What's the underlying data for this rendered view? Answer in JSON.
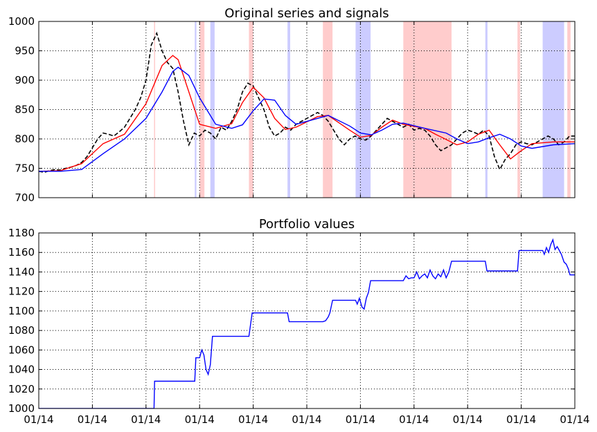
{
  "chart_data": [
    {
      "type": "line",
      "title": "Original series and signals",
      "xlabel": "",
      "ylabel": "",
      "ylim": [
        700,
        1000
      ],
      "yticks": [
        700,
        750,
        800,
        850,
        900,
        950,
        1000
      ],
      "xtick_labels": [
        "01/14",
        "01/14",
        "01/14",
        "01/14",
        "01/14",
        "01/14",
        "01/14",
        "01/14",
        "01/14",
        "01/14",
        "01/14"
      ],
      "grid": true,
      "x_range": [
        0,
        100
      ],
      "series": [
        {
          "color": "#000000",
          "style": "dashed",
          "points": [
            [
              0,
              745
            ],
            [
              1,
              743
            ],
            [
              2,
              746
            ],
            [
              3,
              748
            ],
            [
              4,
              747
            ],
            [
              5,
              750
            ],
            [
              6,
              752
            ],
            [
              7,
              755
            ],
            [
              8,
              760
            ],
            [
              9,
              770
            ],
            [
              10,
              785
            ],
            [
              11,
              800
            ],
            [
              12,
              810
            ],
            [
              13,
              808
            ],
            [
              14,
              805
            ],
            [
              15,
              812
            ],
            [
              16,
              820
            ],
            [
              17,
              835
            ],
            [
              18,
              850
            ],
            [
              19,
              870
            ],
            [
              20,
              900
            ],
            [
              21,
              960
            ],
            [
              22,
              980
            ],
            [
              23,
              950
            ],
            [
              24,
              930
            ],
            [
              25,
              920
            ],
            [
              26,
              880
            ],
            [
              27,
              830
            ],
            [
              28,
              790
            ],
            [
              29,
              810
            ],
            [
              30,
              805
            ],
            [
              31,
              815
            ],
            [
              32,
              810
            ],
            [
              33,
              800
            ],
            [
              34,
              820
            ],
            [
              35,
              815
            ],
            [
              36,
              830
            ],
            [
              37,
              850
            ],
            [
              38,
              880
            ],
            [
              39,
              895
            ],
            [
              40,
              890
            ],
            [
              41,
              870
            ],
            [
              42,
              850
            ],
            [
              43,
              820
            ],
            [
              44,
              805
            ],
            [
              45,
              810
            ],
            [
              46,
              820
            ],
            [
              47,
              815
            ],
            [
              48,
              825
            ],
            [
              49,
              830
            ],
            [
              50,
              835
            ],
            [
              51,
              840
            ],
            [
              52,
              845
            ],
            [
              53,
              840
            ],
            [
              54,
              830
            ],
            [
              55,
              815
            ],
            [
              56,
              800
            ],
            [
              57,
              790
            ],
            [
              58,
              800
            ],
            [
              59,
              805
            ],
            [
              60,
              800
            ],
            [
              61,
              798
            ],
            [
              62,
              805
            ],
            [
              63,
              815
            ],
            [
              64,
              825
            ],
            [
              65,
              835
            ],
            [
              66,
              830
            ],
            [
              67,
              825
            ],
            [
              68,
              820
            ],
            [
              69,
              825
            ],
            [
              70,
              815
            ],
            [
              71,
              818
            ],
            [
              72,
              815
            ],
            [
              73,
              805
            ],
            [
              74,
              790
            ],
            [
              75,
              780
            ],
            [
              76,
              785
            ],
            [
              77,
              790
            ],
            [
              78,
              800
            ],
            [
              79,
              810
            ],
            [
              80,
              815
            ],
            [
              81,
              812
            ],
            [
              82,
              808
            ],
            [
              83,
              815
            ],
            [
              84,
              805
            ],
            [
              85,
              770
            ],
            [
              86,
              748
            ],
            [
              87,
              765
            ],
            [
              88,
              775
            ],
            [
              89,
              790
            ],
            [
              90,
              795
            ],
            [
              91,
              792
            ],
            [
              92,
              790
            ],
            [
              93,
              795
            ],
            [
              94,
              800
            ],
            [
              95,
              805
            ],
            [
              96,
              800
            ],
            [
              97,
              790
            ],
            [
              98,
              795
            ],
            [
              99,
              805
            ],
            [
              100,
              805
            ]
          ]
        },
        {
          "color": "#ff0000",
          "style": "solid",
          "points": [
            [
              0,
              745
            ],
            [
              4,
              746
            ],
            [
              8,
              758
            ],
            [
              12,
              792
            ],
            [
              16,
              808
            ],
            [
              20,
              860
            ],
            [
              23,
              925
            ],
            [
              25,
              942
            ],
            [
              26,
              935
            ],
            [
              28,
              880
            ],
            [
              30,
              825
            ],
            [
              33,
              818
            ],
            [
              36,
              826
            ],
            [
              38,
              862
            ],
            [
              40,
              888
            ],
            [
              42,
              870
            ],
            [
              44,
              835
            ],
            [
              46,
              816
            ],
            [
              48,
              820
            ],
            [
              52,
              838
            ],
            [
              54,
              840
            ],
            [
              58,
              815
            ],
            [
              60,
              803
            ],
            [
              62,
              806
            ],
            [
              64,
              820
            ],
            [
              66,
              832
            ],
            [
              68,
              825
            ],
            [
              72,
              818
            ],
            [
              74,
              808
            ],
            [
              78,
              790
            ],
            [
              80,
              795
            ],
            [
              82,
              808
            ],
            [
              84,
              815
            ],
            [
              86,
              790
            ],
            [
              88,
              766
            ],
            [
              90,
              780
            ],
            [
              92,
              792
            ],
            [
              96,
              795
            ],
            [
              100,
              795
            ]
          ]
        },
        {
          "color": "#0000ff",
          "style": "solid",
          "points": [
            [
              0,
              745
            ],
            [
              4,
              745
            ],
            [
              8,
              748
            ],
            [
              12,
              775
            ],
            [
              16,
              800
            ],
            [
              20,
              835
            ],
            [
              23,
              880
            ],
            [
              25,
              915
            ],
            [
              26,
              922
            ],
            [
              28,
              908
            ],
            [
              30,
              870
            ],
            [
              33,
              825
            ],
            [
              36,
              818
            ],
            [
              38,
              824
            ],
            [
              40,
              848
            ],
            [
              42,
              868
            ],
            [
              44,
              866
            ],
            [
              46,
              840
            ],
            [
              48,
              825
            ],
            [
              52,
              835
            ],
            [
              54,
              840
            ],
            [
              58,
              822
            ],
            [
              60,
              810
            ],
            [
              62,
              807
            ],
            [
              64,
              815
            ],
            [
              66,
              825
            ],
            [
              68,
              827
            ],
            [
              72,
              818
            ],
            [
              76,
              810
            ],
            [
              78,
              800
            ],
            [
              80,
              792
            ],
            [
              82,
              795
            ],
            [
              84,
              802
            ],
            [
              86,
              808
            ],
            [
              88,
              800
            ],
            [
              90,
              788
            ],
            [
              92,
              784
            ],
            [
              96,
              790
            ],
            [
              100,
              792
            ]
          ]
        }
      ],
      "bands": [
        {
          "color": "#ff0000",
          "range": [
            21.5,
            21.7
          ]
        },
        {
          "color": "#0000ff",
          "range": [
            29.1,
            29.4
          ]
        },
        {
          "color": "#ff0000",
          "range": [
            30.0,
            30.9
          ]
        },
        {
          "color": "#0000ff",
          "range": [
            32.0,
            32.8
          ]
        },
        {
          "color": "#ff0000",
          "range": [
            39.2,
            40.0
          ]
        },
        {
          "color": "#0000ff",
          "range": [
            46.4,
            46.9
          ]
        },
        {
          "color": "#ff0000",
          "range": [
            53.0,
            54.8
          ]
        },
        {
          "color": "#0000ff",
          "range": [
            59.1,
            61.9
          ]
        },
        {
          "color": "#ff0000",
          "range": [
            68.0,
            77.0
          ]
        },
        {
          "color": "#0000ff",
          "range": [
            83.3,
            83.7
          ]
        },
        {
          "color": "#ff0000",
          "range": [
            89.3,
            89.8
          ]
        },
        {
          "color": "#0000ff",
          "range": [
            94.0,
            98.0
          ]
        },
        {
          "color": "#ff0000",
          "range": [
            98.6,
            99.2
          ]
        }
      ]
    },
    {
      "type": "line",
      "title": "Portfolio values",
      "xlabel": "",
      "ylabel": "",
      "ylim": [
        1000,
        1180
      ],
      "yticks": [
        1000,
        1020,
        1040,
        1060,
        1080,
        1100,
        1120,
        1140,
        1160,
        1180
      ],
      "xtick_labels": [
        "01/14",
        "01/14",
        "01/14",
        "01/14",
        "01/14",
        "01/14",
        "01/14",
        "01/14",
        "01/14",
        "01/14",
        "01/14"
      ],
      "grid": true,
      "x_range": [
        0,
        100
      ],
      "series": [
        {
          "color": "#0000ff",
          "style": "solid",
          "points": [
            [
              0,
              1000
            ],
            [
              21.5,
              1000
            ],
            [
              21.6,
              1028
            ],
            [
              29.1,
              1028
            ],
            [
              29.3,
              1052
            ],
            [
              30.0,
              1052
            ],
            [
              30.4,
              1060
            ],
            [
              30.8,
              1055
            ],
            [
              31.2,
              1040
            ],
            [
              31.6,
              1035
            ],
            [
              32.0,
              1045
            ],
            [
              32.4,
              1074
            ],
            [
              39.2,
              1074
            ],
            [
              39.8,
              1098
            ],
            [
              46.4,
              1098
            ],
            [
              46.7,
              1089
            ],
            [
              53.0,
              1089
            ],
            [
              53.5,
              1090
            ],
            [
              54.0,
              1094
            ],
            [
              54.3,
              1098
            ],
            [
              54.8,
              1111
            ],
            [
              59.1,
              1111
            ],
            [
              59.4,
              1107
            ],
            [
              59.8,
              1113
            ],
            [
              60.3,
              1104
            ],
            [
              60.7,
              1102
            ],
            [
              61.1,
              1113
            ],
            [
              61.5,
              1119
            ],
            [
              61.9,
              1131
            ],
            [
              68.0,
              1131
            ],
            [
              68.5,
              1136
            ],
            [
              69.0,
              1133
            ],
            [
              69.5,
              1134
            ],
            [
              70.0,
              1134
            ],
            [
              70.5,
              1140
            ],
            [
              71.0,
              1133
            ],
            [
              71.5,
              1136
            ],
            [
              72.0,
              1138
            ],
            [
              72.5,
              1134
            ],
            [
              73.0,
              1142
            ],
            [
              73.5,
              1136
            ],
            [
              74.0,
              1133
            ],
            [
              74.5,
              1138
            ],
            [
              75.0,
              1135
            ],
            [
              75.5,
              1142
            ],
            [
              76.0,
              1134
            ],
            [
              76.5,
              1140
            ],
            [
              77.0,
              1151
            ],
            [
              83.3,
              1151
            ],
            [
              83.6,
              1141
            ],
            [
              89.3,
              1141
            ],
            [
              89.6,
              1162
            ],
            [
              94.0,
              1162
            ],
            [
              94.3,
              1158
            ],
            [
              94.7,
              1165
            ],
            [
              95.1,
              1160
            ],
            [
              95.5,
              1168
            ],
            [
              95.9,
              1173
            ],
            [
              96.3,
              1163
            ],
            [
              96.7,
              1166
            ],
            [
              97.1,
              1162
            ],
            [
              97.5,
              1158
            ],
            [
              98.0,
              1150
            ],
            [
              98.4,
              1148
            ],
            [
              98.8,
              1143
            ],
            [
              99.1,
              1137
            ],
            [
              100,
              1137
            ]
          ]
        }
      ],
      "bands": []
    }
  ]
}
